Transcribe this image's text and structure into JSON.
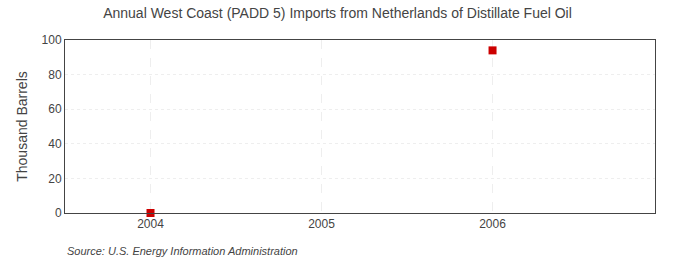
{
  "chart_data": {
    "type": "scatter",
    "title": "Annual West Coast (PADD 5) Imports from Netherlands of Distillate Fuel Oil",
    "y_label": "Thousand Barrels",
    "annotations": [
      "Source: U.S. Energy Information Administration"
    ],
    "x": [
      2004,
      2006
    ],
    "values": [
      0,
      94
    ],
    "color": "#cc0000",
    "marker": "square",
    "xlim": [
      2003.5,
      2006.95
    ],
    "xticks": [
      2004,
      2005,
      2006
    ],
    "ylim": [
      0,
      100
    ],
    "yticks": [
      0,
      20,
      40,
      60,
      80,
      100
    ],
    "grid": true
  }
}
